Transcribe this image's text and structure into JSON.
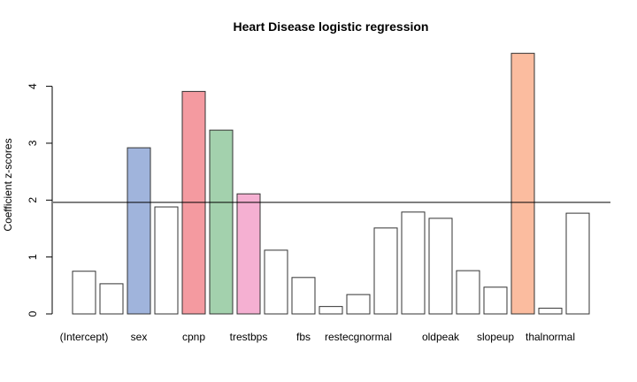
{
  "chart_data": {
    "type": "bar",
    "title": "Heart Disease logistic regression",
    "xlabel": "",
    "ylabel": "Coefficient z-scores",
    "ylim": [
      0,
      4.6
    ],
    "yticks": [
      0,
      1,
      2,
      3,
      4
    ],
    "reference_line": 1.96,
    "categories": [
      "(Intercept)",
      "",
      "sex",
      "",
      "cpnp",
      "",
      "trestbps",
      "",
      "fbs",
      "",
      "restecgnormal",
      "",
      "",
      "oldpeak",
      "",
      "slopeup",
      "",
      "thalnormal",
      ""
    ],
    "values": [
      0.75,
      0.53,
      2.92,
      1.88,
      3.91,
      3.23,
      2.11,
      1.12,
      0.64,
      0.13,
      0.34,
      1.51,
      1.79,
      1.68,
      0.76,
      0.47,
      4.58,
      0.1,
      1.77
    ],
    "bar_colors": [
      "#ffffff",
      "#ffffff",
      "#a0b4dc",
      "#ffffff",
      "#f49aa0",
      "#a3d1ad",
      "#f5b0d2",
      "#ffffff",
      "#ffffff",
      "#ffffff",
      "#ffffff",
      "#ffffff",
      "#ffffff",
      "#ffffff",
      "#ffffff",
      "#ffffff",
      "#fbbc9f",
      "#ffffff",
      "#ffffff"
    ],
    "grid": false,
    "legend": "none"
  }
}
